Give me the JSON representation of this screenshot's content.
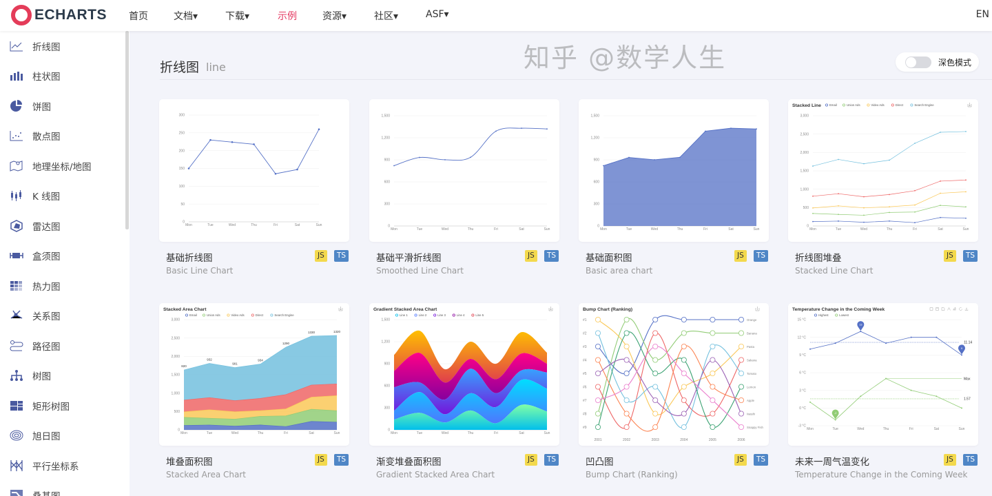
{
  "header": {
    "logo_text": "ECHARTS",
    "nav": [
      {
        "label": "首页",
        "active": false
      },
      {
        "label": "文档▾",
        "active": false
      },
      {
        "label": "下载▾",
        "active": false
      },
      {
        "label": "示例",
        "active": true
      },
      {
        "label": "资源▾",
        "active": false
      },
      {
        "label": "社区▾",
        "active": false
      },
      {
        "label": "ASF▾",
        "active": false
      }
    ],
    "lang": "EN",
    "accent": "#e43961"
  },
  "sidebar": {
    "items": [
      {
        "label": "折线图",
        "icon": "line"
      },
      {
        "label": "柱状图",
        "icon": "bar"
      },
      {
        "label": "饼图",
        "icon": "pie"
      },
      {
        "label": "散点图",
        "icon": "scatter"
      },
      {
        "label": "地理坐标/地图",
        "icon": "map"
      },
      {
        "label": "K 线图",
        "icon": "candlestick"
      },
      {
        "label": "雷达图",
        "icon": "radar"
      },
      {
        "label": "盒须图",
        "icon": "boxplot"
      },
      {
        "label": "热力图",
        "icon": "heatmap"
      },
      {
        "label": "关系图",
        "icon": "graph"
      },
      {
        "label": "路径图",
        "icon": "lines"
      },
      {
        "label": "树图",
        "icon": "tree"
      },
      {
        "label": "矩形树图",
        "icon": "treemap"
      },
      {
        "label": "旭日图",
        "icon": "sunburst"
      },
      {
        "label": "平行坐标系",
        "icon": "parallel"
      },
      {
        "label": "桑基图",
        "icon": "sankey"
      }
    ]
  },
  "page": {
    "title": "折线图",
    "subtitle": "line",
    "dark_mode_label": "深色模式",
    "dark_mode_on": false
  },
  "palette": [
    "#5470c6",
    "#91cc75",
    "#fac858",
    "#ee6666",
    "#73c0de",
    "#3ba272",
    "#fc8452",
    "#9a60b4",
    "#ea7ccc"
  ],
  "watermark": "知乎 @数学人生",
  "cards": [
    {
      "title": "基础折线图",
      "subtitle": "Basic Line Chart",
      "js": "JS",
      "ts": "TS",
      "chart": {
        "type": "line",
        "categories": [
          "Mon",
          "Tue",
          "Wed",
          "Thu",
          "Fri",
          "Sat",
          "Sun"
        ],
        "ytick_labels": [
          "0",
          "50",
          "100",
          "150",
          "200",
          "250",
          "300"
        ],
        "ylim": [
          0,
          300
        ],
        "series": [
          {
            "values": [
              150,
              230,
              224,
              218,
              135,
              147,
              260
            ]
          }
        ]
      }
    },
    {
      "title": "基础平滑折线图",
      "subtitle": "Smoothed Line Chart",
      "js": "JS",
      "ts": "TS",
      "chart": {
        "type": "smooth",
        "categories": [
          "Mon",
          "Tue",
          "Wed",
          "Thu",
          "Fri",
          "Sat",
          "Sun"
        ],
        "ytick_labels": [
          "0",
          "300",
          "600",
          "900",
          "1,200",
          "1,500"
        ],
        "ylim": [
          0,
          1500
        ],
        "series": [
          {
            "values": [
              820,
              932,
              901,
              934,
              1290,
              1330,
              1320
            ]
          }
        ]
      }
    },
    {
      "title": "基础面积图",
      "subtitle": "Basic area chart",
      "js": "JS",
      "ts": "TS",
      "chart": {
        "type": "area",
        "categories": [
          "Mon",
          "Tue",
          "Wed",
          "Thu",
          "Fri",
          "Sat",
          "Sun"
        ],
        "ytick_labels": [
          "0",
          "300",
          "600",
          "900",
          "1,200",
          "1,500"
        ],
        "ylim": [
          0,
          1500
        ],
        "series": [
          {
            "values": [
              820,
              932,
              901,
              934,
              1290,
              1330,
              1320
            ]
          }
        ]
      }
    },
    {
      "title": "折线图堆叠",
      "subtitle": "Stacked Line Chart",
      "js": "JS",
      "ts": "TS",
      "chart": {
        "type": "stacked-line",
        "title": "Stacked Line",
        "categories": [
          "Mon",
          "Tue",
          "Wed",
          "Thu",
          "Fri",
          "Sat",
          "Sun"
        ],
        "ytick_labels": [
          "0",
          "500",
          "1,000",
          "1,500",
          "2,000",
          "2,500",
          "3,000"
        ],
        "ylim": [
          0,
          3000
        ],
        "series": [
          {
            "name": "Email",
            "values": [
              120,
              132,
              101,
              134,
              90,
              230,
              210
            ]
          },
          {
            "name": "Union Ads",
            "values": [
              220,
              182,
              191,
              234,
              290,
              330,
              310
            ]
          },
          {
            "name": "Video Ads",
            "values": [
              150,
              232,
              201,
              154,
              190,
              330,
              410
            ]
          },
          {
            "name": "Direct",
            "values": [
              320,
              332,
              301,
              334,
              390,
              330,
              320
            ]
          },
          {
            "name": "Search Engine",
            "values": [
              820,
              932,
              901,
              934,
              1290,
              1330,
              1320
            ]
          }
        ]
      }
    },
    {
      "title": "堆叠面积图",
      "subtitle": "Stacked Area Chart",
      "js": "JS",
      "ts": "TS",
      "chart": {
        "type": "stacked-area",
        "title": "Stacked Area Chart",
        "categories": [
          "Mon",
          "Tue",
          "Wed",
          "Thu",
          "Fri",
          "Sat",
          "Sun"
        ],
        "ytick_labels": [
          "0",
          "500",
          "1,000",
          "1,500",
          "2,000",
          "2,500",
          "3,000"
        ],
        "ylim": [
          0,
          3000
        ],
        "top_labels": [
          "820",
          "932",
          "901",
          "934",
          "1290",
          "1330",
          "1320"
        ],
        "series": [
          {
            "name": "Email",
            "values": [
              120,
              132,
              101,
              134,
              90,
              230,
              210
            ]
          },
          {
            "name": "Union Ads",
            "values": [
              220,
              182,
              191,
              234,
              290,
              330,
              310
            ]
          },
          {
            "name": "Video Ads",
            "values": [
              150,
              232,
              201,
              154,
              190,
              330,
              410
            ]
          },
          {
            "name": "Direct",
            "values": [
              320,
              332,
              301,
              334,
              390,
              330,
              320
            ]
          },
          {
            "name": "Search Engine",
            "values": [
              820,
              932,
              901,
              934,
              1290,
              1330,
              1320
            ]
          }
        ]
      }
    },
    {
      "title": "渐变堆叠面积图",
      "subtitle": "Gradient Stacked Area Chart",
      "js": "JS",
      "ts": "TS",
      "chart": {
        "type": "gradient-stacked",
        "title": "Gradient Stacked Area Chart",
        "categories": [
          "Mon",
          "Tue",
          "Wed",
          "Thu",
          "Fri",
          "Sat",
          "Sun"
        ],
        "ytick_labels": [
          "0",
          "300",
          "600",
          "900",
          "1,200",
          "1,500"
        ],
        "ylim": [
          0,
          1500
        ],
        "series": [
          {
            "name": "Line 1",
            "values": [
              140,
              232,
              101,
              264,
              90,
              340,
              250
            ],
            "colors": [
              "#80ffa5",
              "#01bfec"
            ]
          },
          {
            "name": "Line 2",
            "values": [
              120,
              282,
              111,
              234,
              220,
              340,
              310
            ],
            "colors": [
              "#00ddff",
              "#4d77ff"
            ]
          },
          {
            "name": "Line 3",
            "values": [
              320,
              132,
              201,
              334,
              190,
              130,
              220
            ],
            "colors": [
              "#37a2ff",
              "#7415db"
            ]
          },
          {
            "name": "Line 4",
            "values": [
              220,
              402,
              231,
              134,
              190,
              230,
              120
            ],
            "colors": [
              "#ff0087",
              "#87009d"
            ]
          },
          {
            "name": "Line 5",
            "values": [
              220,
              302,
              181,
              234,
              210,
              290,
              150
            ],
            "colors": [
              "#ffbf00",
              "#e03e4c"
            ]
          }
        ]
      }
    },
    {
      "title": "凹凸图",
      "subtitle": "Bump Chart (Ranking)",
      "js": "JS",
      "ts": "TS",
      "chart": {
        "type": "bump",
        "title": "Bump Chart (Ranking)",
        "categories": [
          "2001",
          "2002",
          "2003",
          "2004",
          "2005",
          "2006"
        ],
        "ytick_labels": [
          "#1",
          "#2",
          "#3",
          "#4",
          "#5",
          "#6",
          "#7",
          "#8",
          "#9"
        ],
        "series": [
          {
            "name": "Orange",
            "values": [
              3,
              5,
              1,
              1,
              1,
              1
            ]
          },
          {
            "name": "Banana",
            "values": [
              8,
              1,
              4,
              2,
              2,
              2
            ]
          },
          {
            "name": "Pasta",
            "values": [
              1,
              3,
              8,
              6,
              5,
              3
            ]
          },
          {
            "name": "Sakana",
            "values": [
              6,
              9,
              2,
              7,
              8,
              4
            ]
          },
          {
            "name": "Tomato",
            "values": [
              2,
              7,
              6,
              9,
              3,
              5
            ]
          },
          {
            "name": "Lemon",
            "values": [
              9,
              2,
              5,
              4,
              9,
              6
            ]
          },
          {
            "name": "Apple",
            "values": [
              4,
              8,
              9,
              3,
              6,
              7
            ]
          },
          {
            "name": "Iwashi",
            "values": [
              5,
              4,
              7,
              8,
              4,
              8
            ]
          },
          {
            "name": "Snappy Fish",
            "values": [
              7,
              6,
              3,
              5,
              7,
              9
            ]
          }
        ]
      }
    },
    {
      "title": "未来一周气温变化",
      "subtitle": "Temperature Change in the Coming Week",
      "js": "JS",
      "ts": "TS",
      "chart": {
        "type": "temperature",
        "title": "Temperature Change in the Coming Week",
        "categories": [
          "Mon",
          "Tue",
          "Wed",
          "Thu",
          "Fri",
          "Sat",
          "Sun"
        ],
        "ytick_labels": [
          "-3 °C",
          "0 °C",
          "3 °C",
          "6 °C",
          "9 °C",
          "12 °C",
          "15 °C"
        ],
        "ylim": [
          -3,
          15
        ],
        "series": [
          {
            "name": "Highest",
            "values": [
              10,
              11,
              13,
              11,
              12,
              12,
              9
            ],
            "pins": [
              "13",
              "9"
            ],
            "avg_label": "11.14"
          },
          {
            "name": "Lowest",
            "values": [
              1,
              -2,
              2,
              5,
              3,
              2,
              0
            ],
            "pins": [
              "-2"
            ],
            "avg_label": "1.57",
            "max_label": "Max"
          }
        ]
      }
    }
  ]
}
